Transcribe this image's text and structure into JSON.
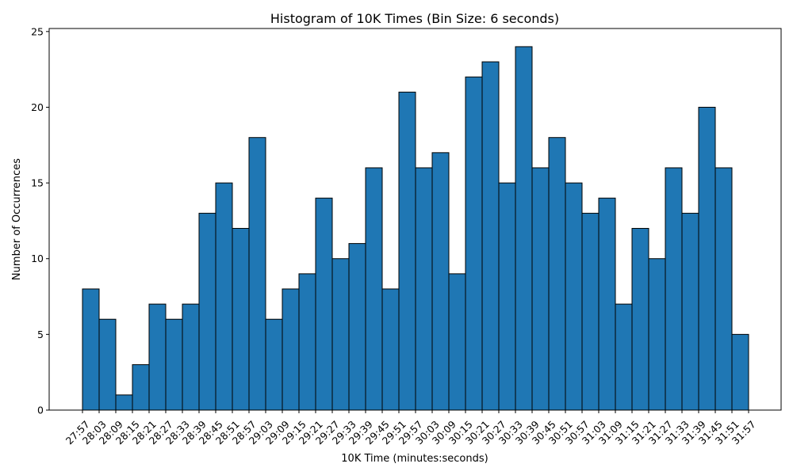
{
  "chart_data": {
    "type": "bar",
    "title": "Histogram of 10K Times (Bin Size: 6 seconds)",
    "xlabel": "10K Time (minutes:seconds)",
    "ylabel": "Number of Occurrences",
    "bin_edges": [
      "27:57",
      "28:03",
      "28:09",
      "28:15",
      "28:21",
      "28:27",
      "28:33",
      "28:39",
      "28:45",
      "28:51",
      "28:57",
      "29:03",
      "29:09",
      "29:15",
      "29:21",
      "29:27",
      "29:33",
      "29:39",
      "29:45",
      "29:51",
      "29:57",
      "30:03",
      "30:09",
      "30:15",
      "30:21",
      "30:27",
      "30:33",
      "30:39",
      "30:45",
      "30:51",
      "30:57",
      "31:03",
      "31:09",
      "31:15",
      "31:21",
      "31:27",
      "31:33",
      "31:39",
      "31:45",
      "31:51",
      "31:57"
    ],
    "values": [
      8,
      6,
      1,
      3,
      7,
      6,
      7,
      13,
      15,
      12,
      18,
      6,
      8,
      9,
      14,
      10,
      11,
      16,
      8,
      21,
      16,
      17,
      9,
      22,
      23,
      15,
      24,
      16,
      18,
      15,
      13,
      14,
      7,
      12,
      10,
      16,
      13,
      20,
      16,
      5
    ],
    "ylim": [
      0,
      25.2
    ],
    "yticks": [
      0,
      5,
      10,
      15,
      20,
      25
    ],
    "grid": false,
    "colors": {
      "bar": "#1f77b4",
      "edge": "#000000"
    }
  }
}
